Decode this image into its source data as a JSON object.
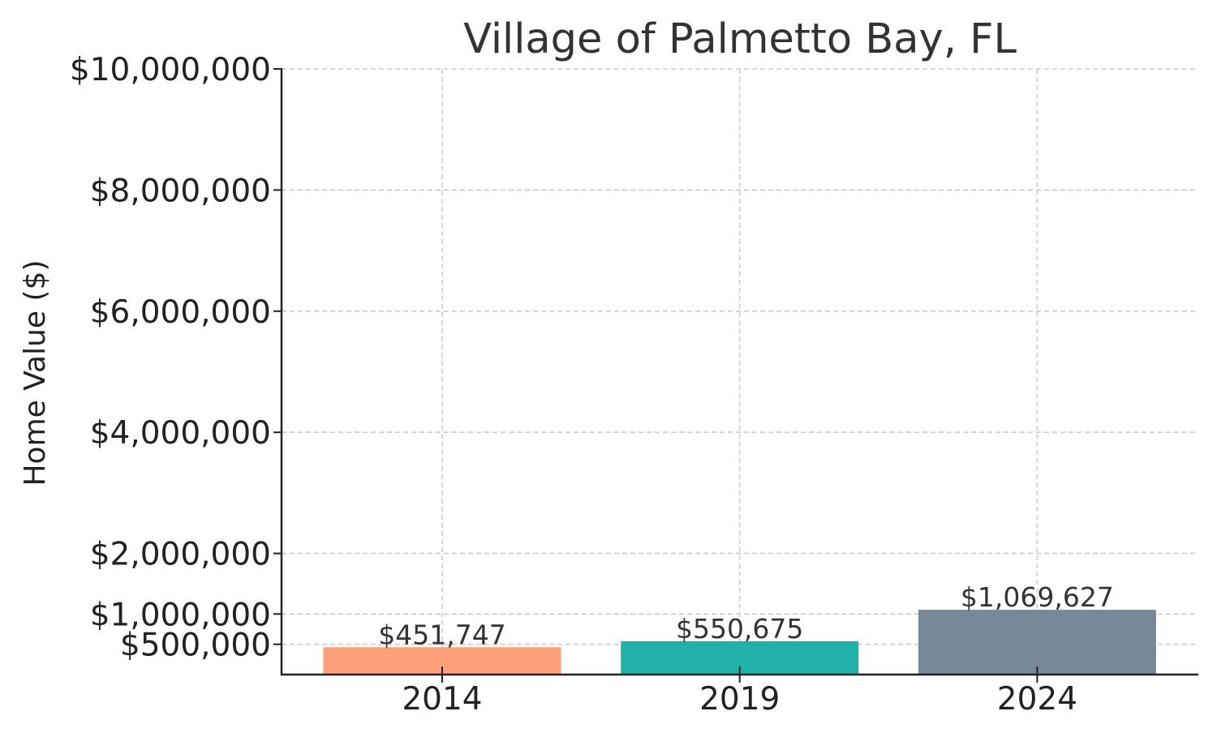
{
  "chart_data": {
    "type": "bar",
    "title": "Village of Palmetto Bay, FL",
    "xlabel": "",
    "ylabel": "Home Value ($)",
    "categories": [
      "2014",
      "2019",
      "2024"
    ],
    "values": [
      451747,
      550675,
      1069627
    ],
    "value_labels": [
      "$451,747",
      "$550,675",
      "$1,069,627"
    ],
    "colors": [
      "#FFA07A",
      "#20B2AA",
      "#778899"
    ],
    "ylim": [
      0,
      10000000
    ],
    "yticks": [
      500000,
      1000000,
      2000000,
      4000000,
      6000000,
      8000000,
      10000000
    ],
    "ytick_labels": [
      "$500,000",
      "$1,000,000",
      "$2,000,000",
      "$4,000,000",
      "$6,000,000",
      "$8,000,000",
      "$10,000,000"
    ],
    "grid": true
  }
}
